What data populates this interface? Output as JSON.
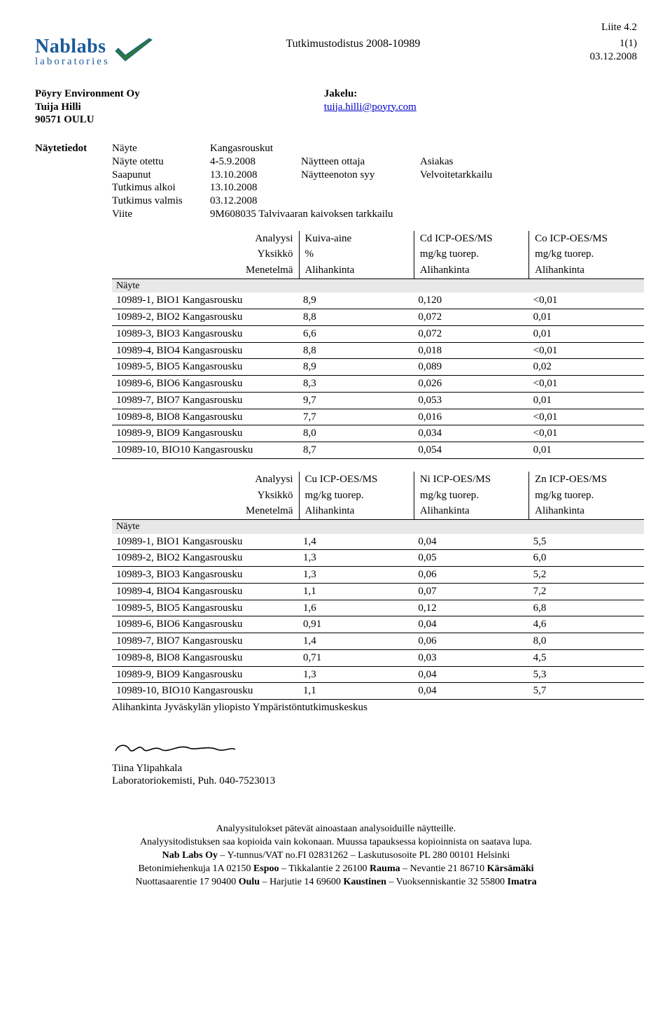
{
  "attachment_label": "Liite 4.2",
  "doc_title": "Tutkimustodistus 2008-10989",
  "page_indicator": "1(1)",
  "doc_date": "03.12.2008",
  "logo": {
    "top": "Nablabs",
    "bottom": "laboratories",
    "color": "#1a5a9a"
  },
  "client": {
    "name": "Pöyry Environment Oy",
    "contact": "Tuija Hilli",
    "location": "90571 OULU",
    "distribution_label": "Jakelu:",
    "email": "tuija.hilli@poyry.com"
  },
  "meta": {
    "section_label": "Näytetiedot",
    "rows": [
      {
        "k": "Näyte",
        "v": "Kangasrouskut"
      },
      {
        "k": "Näyte otettu",
        "v": "4-5.9.2008",
        "ek": "Näytteen ottaja",
        "ev": "Asiakas"
      },
      {
        "k": "Saapunut",
        "v": "13.10.2008",
        "ek": "Näytteenoton syy",
        "ev": "Velvoitetarkkailu"
      },
      {
        "k": "Tutkimus alkoi",
        "v": "13.10.2008"
      },
      {
        "k": "Tutkimus valmis",
        "v": "03.12.2008"
      },
      {
        "k": "Viite",
        "v": "9M608035 Talvivaaran kaivoksen tarkkailu"
      }
    ]
  },
  "table1": {
    "head_labels": [
      "Analyysi",
      "Yksikkö",
      "Menetelmä"
    ],
    "nayte_label": "Näyte",
    "cols": [
      {
        "l1": "Kuiva-aine",
        "l2": "%",
        "l3": "Alihankinta"
      },
      {
        "l1": "Cd ICP-OES/MS",
        "l2": "mg/kg tuorep.",
        "l3": "Alihankinta"
      },
      {
        "l1": "Co ICP-OES/MS",
        "l2": "mg/kg tuorep.",
        "l3": "Alihankinta"
      }
    ],
    "rows": [
      {
        "label": "10989-1, BIO1 Kangasrousku",
        "v": [
          "8,9",
          "0,120",
          "<0,01"
        ]
      },
      {
        "label": "10989-2, BIO2 Kangasrousku",
        "v": [
          "8,8",
          "0,072",
          "0,01"
        ]
      },
      {
        "label": "10989-3, BIO3 Kangasrousku",
        "v": [
          "6,6",
          "0,072",
          "0,01"
        ]
      },
      {
        "label": "10989-4, BIO4 Kangasrousku",
        "v": [
          "8,8",
          "0,018",
          "<0,01"
        ]
      },
      {
        "label": "10989-5, BIO5 Kangasrousku",
        "v": [
          "8,9",
          "0,089",
          "0,02"
        ]
      },
      {
        "label": "10989-6, BIO6 Kangasrousku",
        "v": [
          "8,3",
          "0,026",
          "<0,01"
        ]
      },
      {
        "label": "10989-7, BIO7 Kangasrousku",
        "v": [
          "9,7",
          "0,053",
          "0,01"
        ]
      },
      {
        "label": "10989-8, BIO8 Kangasrousku",
        "v": [
          "7,7",
          "0,016",
          "<0,01"
        ]
      },
      {
        "label": "10989-9, BIO9 Kangasrousku",
        "v": [
          "8,0",
          "0,034",
          "<0,01"
        ]
      },
      {
        "label": "10989-10, BIO10 Kangasrousku",
        "v": [
          "8,7",
          "0,054",
          "0,01"
        ]
      }
    ]
  },
  "table2": {
    "head_labels": [
      "Analyysi",
      "Yksikkö",
      "Menetelmä"
    ],
    "nayte_label": "Näyte",
    "cols": [
      {
        "l1": "Cu ICP-OES/MS",
        "l2": "mg/kg tuorep.",
        "l3": "Alihankinta"
      },
      {
        "l1": "Ni ICP-OES/MS",
        "l2": "mg/kg tuorep.",
        "l3": "Alihankinta"
      },
      {
        "l1": "Zn ICP-OES/MS",
        "l2": "mg/kg tuorep.",
        "l3": "Alihankinta"
      }
    ],
    "rows": [
      {
        "label": "10989-1, BIO1 Kangasrousku",
        "v": [
          "1,4",
          "0,04",
          "5,5"
        ]
      },
      {
        "label": "10989-2, BIO2 Kangasrousku",
        "v": [
          "1,3",
          "0,05",
          "6,0"
        ]
      },
      {
        "label": "10989-3, BIO3 Kangasrousku",
        "v": [
          "1,3",
          "0,06",
          "5,2"
        ]
      },
      {
        "label": "10989-4, BIO4 Kangasrousku",
        "v": [
          "1,1",
          "0,07",
          "7,2"
        ]
      },
      {
        "label": "10989-5, BIO5 Kangasrousku",
        "v": [
          "1,6",
          "0,12",
          "6,8"
        ]
      },
      {
        "label": "10989-6, BIO6 Kangasrousku",
        "v": [
          "0,91",
          "0,04",
          "4,6"
        ]
      },
      {
        "label": "10989-7, BIO7 Kangasrousku",
        "v": [
          "1,4",
          "0,06",
          "8,0"
        ]
      },
      {
        "label": "10989-8, BIO8 Kangasrousku",
        "v": [
          "0,71",
          "0,03",
          "4,5"
        ]
      },
      {
        "label": "10989-9, BIO9 Kangasrousku",
        "v": [
          "1,3",
          "0,04",
          "5,3"
        ]
      },
      {
        "label": "10989-10, BIO10 Kangasrousku",
        "v": [
          "1,1",
          "0,04",
          "5,7"
        ]
      }
    ]
  },
  "subcontract_note": "Alihankinta Jyväskylän yliopisto Ympäristöntutkimuskeskus",
  "signature": {
    "name": "Tiina Ylipahkala",
    "title": "Laboratoriokemisti, Puh. 040-7523013"
  },
  "footer": {
    "l1": "Analyysitulokset pätevät ainoastaan analysoiduille näytteille.",
    "l2": "Analyysitodistuksen saa kopioida vain kokonaan. Muussa tapauksessa kopioinnista on saatava lupa.",
    "l3a": "Nab Labs Oy",
    "l3b": " – Y-tunnus/VAT no.FI 02831262 – Laskutusosoite PL 280 00101 Helsinki",
    "l4a": "Betonimiehenkuja 1A 02150 ",
    "l4b": "Espoo",
    "l4c": " – Tikkalantie 2 26100 ",
    "l4d": "Rauma",
    "l4e": " – Nevantie 21 86710 ",
    "l4f": "Kärsämäki",
    "l5a": "Nuottasaarentie 17 90400 ",
    "l5b": "Oulu",
    "l5c": " – Harjutie 14 69600 ",
    "l5d": "Kaustinen",
    "l5e": " – Vuoksenniskantie 32 55800 ",
    "l5f": "Imatra"
  }
}
